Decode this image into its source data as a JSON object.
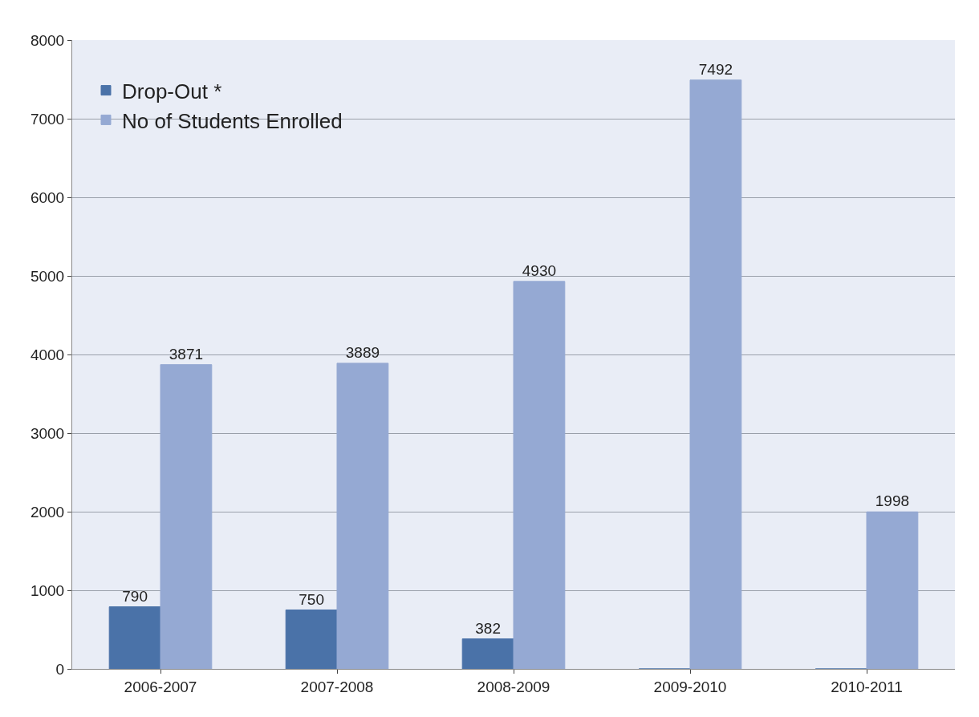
{
  "chart_data": {
    "type": "bar",
    "categories": [
      "2006-2007",
      "2007-2008",
      "2008-2009",
      "2009-2010",
      "2010-2011"
    ],
    "series": [
      {
        "name": "Drop-Out *",
        "color": "#4a72a8",
        "values": [
          790,
          750,
          382,
          0,
          0
        ],
        "value_labels": [
          "790",
          "750",
          "382",
          null,
          null
        ]
      },
      {
        "name": "No of Students Enrolled",
        "color": "#95a9d3",
        "values": [
          3871,
          3889,
          4930,
          7492,
          1998
        ],
        "value_labels": [
          "3871",
          "3889",
          "4930",
          "7492",
          "1998"
        ]
      }
    ],
    "ylim": [
      0,
      8000
    ],
    "yticks": [
      0,
      1000,
      2000,
      3000,
      4000,
      5000,
      6000,
      7000,
      8000
    ],
    "grid": "y",
    "legend": "top left"
  }
}
